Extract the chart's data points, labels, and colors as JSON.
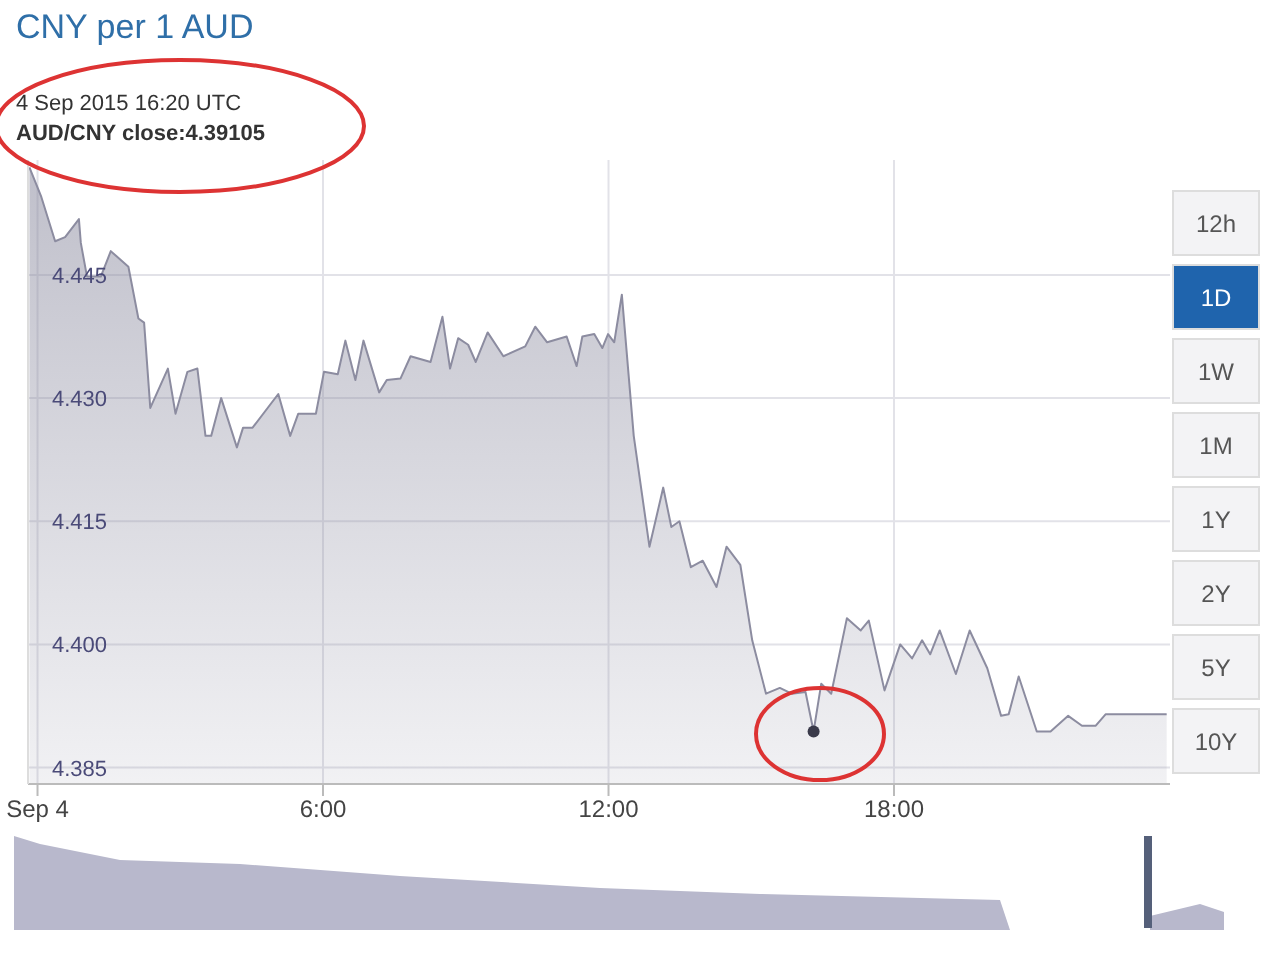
{
  "chart_data": {
    "type": "area",
    "title": "CNY per 1 AUD",
    "annotations": [
      "4 Sep 2015 16:20 UTC",
      "AUD/CNY close:4.39105",
      "12h",
      "1D",
      "1W",
      "1M",
      "1Y",
      "2Y",
      "5Y",
      "10Y"
    ],
    "x": [
      -0.17,
      0.08,
      0.37,
      0.58,
      0.87,
      0.91,
      1.04,
      1.33,
      1.54,
      1.91,
      2.12,
      2.24,
      2.37,
      2.74,
      2.9,
      3.15,
      3.36,
      3.53,
      3.65,
      3.86,
      4.19,
      4.32,
      4.52,
      5.06,
      5.31,
      5.48,
      5.85,
      6.02,
      6.31,
      6.47,
      6.68,
      6.85,
      7.18,
      7.34,
      7.63,
      7.84,
      8.26,
      8.51,
      8.67,
      8.84,
      9.05,
      9.21,
      9.46,
      9.79,
      10.25,
      10.46,
      10.71,
      11.12,
      11.33,
      11.45,
      11.7,
      11.87,
      11.99,
      12.12,
      12.28,
      12.53,
      12.86,
      13.15,
      13.32,
      13.49,
      13.73,
      13.98,
      14.27,
      14.48,
      14.77,
      15.02,
      15.31,
      15.6,
      15.85,
      16.14,
      16.31,
      16.47,
      16.68,
      17.01,
      17.3,
      17.47,
      17.8,
      18.13,
      18.38,
      18.59,
      18.76,
      18.96,
      19.3,
      19.59,
      19.96,
      20.25,
      20.41,
      20.62,
      21.0,
      21.29,
      21.66,
      21.95,
      22.24,
      22.45,
      23.73
    ],
    "series": [
      {
        "type": "scatter",
        "marker": "circle",
        "color": "#3a3a4a",
        "x": [
          16.31
        ],
        "values": [
          4.3894
        ]
      },
      {
        "color": "#8c8ca0",
        "values": [
          4.4581,
          4.4545,
          4.4491,
          4.4496,
          4.4518,
          4.4489,
          4.4448,
          4.4448,
          4.4479,
          4.446,
          4.4397,
          4.4392,
          4.4288,
          4.4336,
          4.4281,
          4.4332,
          4.4336,
          4.4254,
          4.4254,
          4.43,
          4.424,
          4.4264,
          4.4264,
          4.4305,
          4.4254,
          4.4281,
          4.4281,
          4.4332,
          4.4329,
          4.437,
          4.4322,
          4.437,
          4.4307,
          4.4322,
          4.4324,
          4.4351,
          4.4344,
          4.4399,
          4.4336,
          4.4373,
          4.4365,
          4.4344,
          4.438,
          4.4351,
          4.4363,
          4.4387,
          4.4368,
          4.4375,
          4.4339,
          4.4375,
          4.4378,
          4.4361,
          4.4378,
          4.4368,
          4.4426,
          4.4254,
          4.4119,
          4.4191,
          4.4143,
          4.415,
          4.4094,
          4.4102,
          4.407,
          4.4119,
          4.4097,
          4.4005,
          4.394,
          4.3947,
          4.394,
          4.3942,
          4.3894,
          4.3952,
          4.394,
          4.4032,
          4.4017,
          4.4029,
          4.3944,
          4.4,
          4.3983,
          4.4005,
          4.3988,
          4.4017,
          4.3964,
          4.4017,
          4.3971,
          4.3913,
          4.3915,
          4.3961,
          4.3894,
          4.3894,
          4.3913,
          4.3901,
          4.3901,
          4.3915,
          4.3915
        ]
      }
    ],
    "xlim": [
      -0.2,
      23.8
    ],
    "xticks": [
      {
        "value": 0,
        "label": "Sep 4"
      },
      {
        "value": 6,
        "label": "6:00"
      },
      {
        "value": 12,
        "label": "12:00"
      },
      {
        "value": 18,
        "label": "18:00"
      }
    ],
    "ylim": [
      4.383,
      4.459
    ],
    "yticks": [
      {
        "value": 4.385,
        "label": "4.385"
      },
      {
        "value": 4.4,
        "label": "4.400"
      },
      {
        "value": 4.415,
        "label": "4.415"
      },
      {
        "value": 4.43,
        "label": "4.430"
      },
      {
        "value": 4.445,
        "label": "4.445"
      }
    ],
    "grid": true,
    "legend": false,
    "marker": "none",
    "line_style": "solid"
  }
}
